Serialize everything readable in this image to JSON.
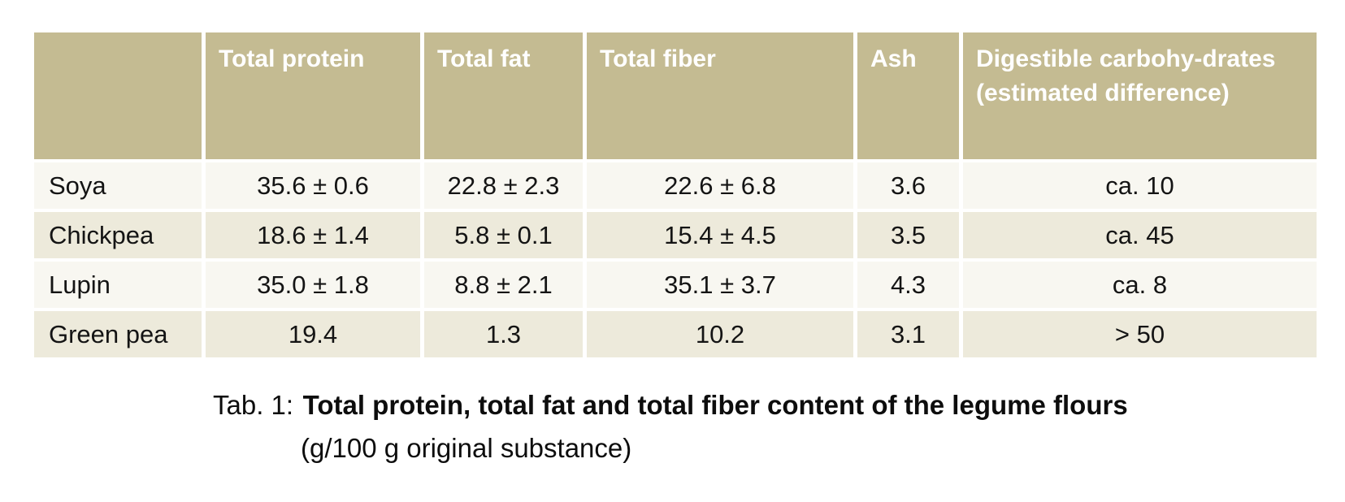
{
  "table": {
    "headers": [
      "",
      "Total protein",
      "Total fat",
      "Total fiber",
      "Ash",
      "Digestible carbohy-drates (estimated difference)"
    ],
    "rows": [
      {
        "label": "Soya",
        "values": [
          "35.6 ± 0.6",
          "22.8 ± 2.3",
          "22.6 ± 6.8",
          "3.6",
          "ca. 10"
        ]
      },
      {
        "label": "Chickpea",
        "values": [
          "18.6 ± 1.4",
          "5.8 ± 0.1",
          "15.4 ± 4.5",
          "3.5",
          "ca. 45"
        ]
      },
      {
        "label": "Lupin",
        "values": [
          "35.0 ± 1.8",
          "8.8 ± 2.1",
          "35.1 ± 3.7",
          "4.3",
          "ca. 8"
        ]
      },
      {
        "label": "Green pea",
        "values": [
          "19.4",
          "1.3",
          "10.2",
          "3.1",
          "> 50"
        ]
      }
    ]
  },
  "caption": {
    "label": "Tab. 1:",
    "title": "Total protein, total fat and total fiber content of the legume flours",
    "subtitle": "(g/100 g original substance)"
  },
  "colors": {
    "header_bg": "#c4bb92",
    "row_light": "#f8f7f1",
    "row_dark": "#edeadb",
    "header_text": "#ffffff",
    "body_text": "#141414"
  }
}
